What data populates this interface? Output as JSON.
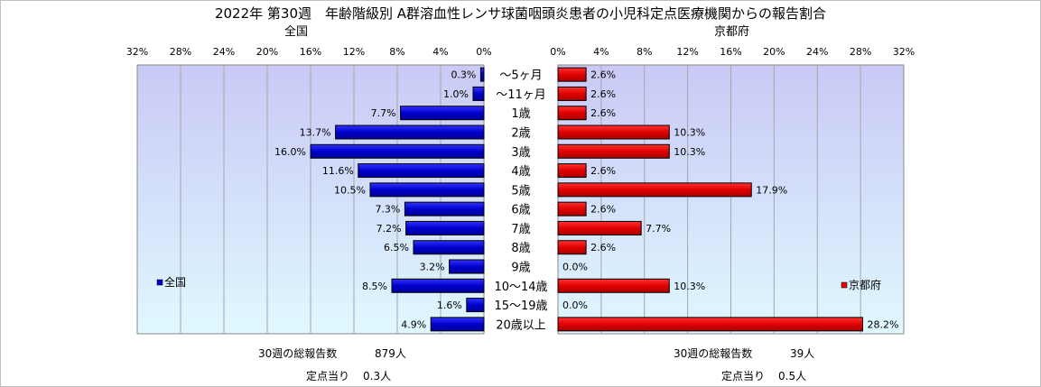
{
  "title": "2022年 第30週　年齢階級別 A群溶血性レンサ球菌咽頭炎患者の小児科定点医療機関からの報告割合",
  "chart_data": [
    {
      "type": "bar",
      "orientation": "horizontal",
      "direction": "right-to-left",
      "subtitle": "全国",
      "categories": [
        "～5ヶ月",
        "～11ヶ月",
        "1歳",
        "2歳",
        "3歳",
        "4歳",
        "5歳",
        "6歳",
        "7歳",
        "8歳",
        "9歳",
        "10～14歳",
        "15～19歳",
        "20歳以上"
      ],
      "series": [
        {
          "name": "全国",
          "values": [
            0.3,
            1.0,
            7.7,
            13.7,
            16.0,
            11.6,
            10.5,
            7.3,
            7.2,
            6.5,
            3.2,
            8.5,
            1.6,
            4.9
          ]
        }
      ],
      "value_labels": [
        "0.3%",
        "1.0%",
        "7.7%",
        "13.7%",
        "16.0%",
        "11.6%",
        "10.5%",
        "7.3%",
        "7.2%",
        "6.5%",
        "3.2%",
        "8.5%",
        "1.6%",
        "4.9%"
      ],
      "xlim": [
        0,
        32
      ],
      "ticks": [
        "0%",
        "4%",
        "8%",
        "12%",
        "16%",
        "20%",
        "24%",
        "28%",
        "32%"
      ],
      "grid": true,
      "legend": "left-lower",
      "color": "#0000cc",
      "background": [
        "#c9c9f5",
        "#dff8ff"
      ]
    },
    {
      "type": "bar",
      "orientation": "horizontal",
      "direction": "left-to-right",
      "subtitle": "京都府",
      "categories": [
        "～5ヶ月",
        "～11ヶ月",
        "1歳",
        "2歳",
        "3歳",
        "4歳",
        "5歳",
        "6歳",
        "7歳",
        "8歳",
        "9歳",
        "10～14歳",
        "15～19歳",
        "20歳以上"
      ],
      "series": [
        {
          "name": "京都府",
          "values": [
            2.6,
            2.6,
            2.6,
            10.3,
            10.3,
            2.6,
            17.9,
            2.6,
            7.7,
            2.6,
            0.0,
            10.3,
            0.0,
            28.2
          ]
        }
      ],
      "value_labels": [
        "2.6%",
        "2.6%",
        "2.6%",
        "10.3%",
        "10.3%",
        "2.6%",
        "17.9%",
        "2.6%",
        "7.7%",
        "2.6%",
        "0.0%",
        "10.3%",
        "0.0%",
        "28.2%"
      ],
      "xlim": [
        0,
        32
      ],
      "ticks": [
        "0%",
        "4%",
        "8%",
        "12%",
        "16%",
        "20%",
        "24%",
        "28%",
        "32%"
      ],
      "grid": true,
      "legend": "right-lower",
      "color": "#ee0000",
      "background": [
        "#c9c9f5",
        "#dff8ff"
      ]
    }
  ],
  "summary": {
    "national": {
      "total_label": "30週の総報告数",
      "total_value": "879人",
      "per_label": "定点当り",
      "per_value": "0.3人"
    },
    "kyoto": {
      "total_label": "30週の総報告数",
      "total_value": "39人",
      "per_label": "定点当り",
      "per_value": "0.5人"
    }
  }
}
